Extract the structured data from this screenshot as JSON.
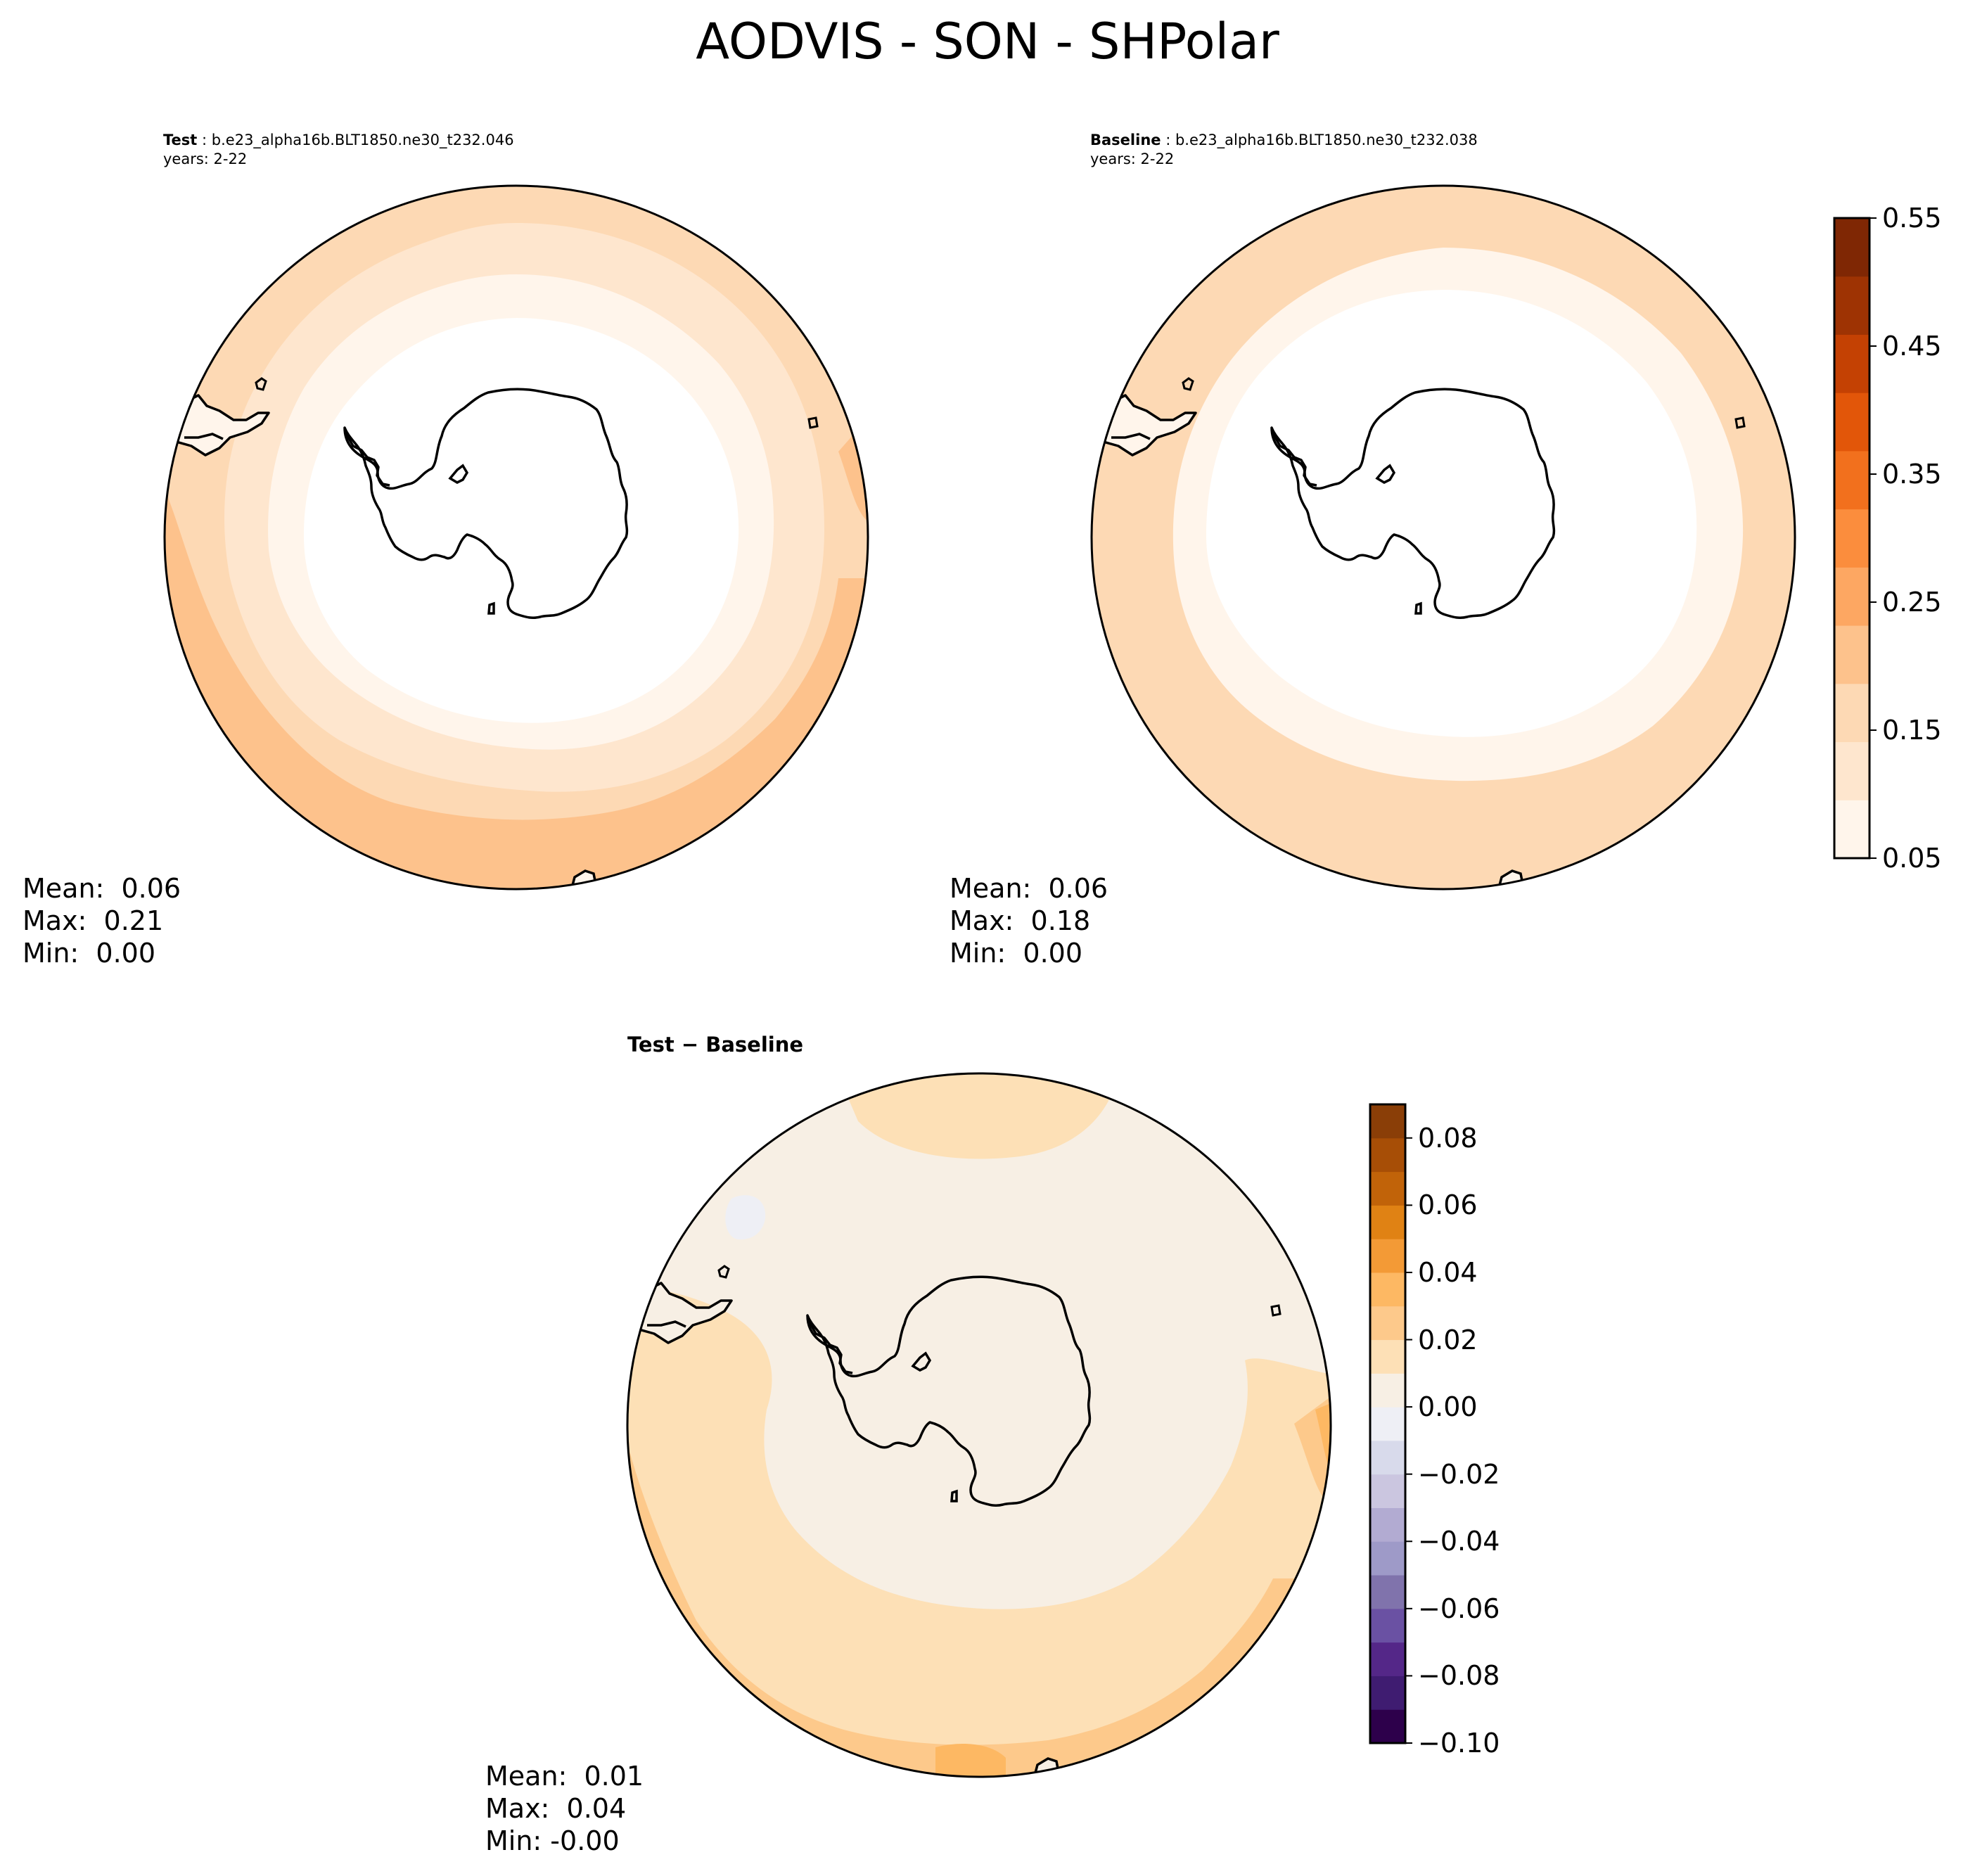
{
  "figure": {
    "title": "AODVIS - SON - SHPolar"
  },
  "panels": {
    "test": {
      "label": "Test",
      "case": "b.e23_alpha16b.BLT1850.ne30_t232.046",
      "years": "years: 2-22",
      "stats": {
        "mean": "Mean:  0.06",
        "max": "Max:  0.21",
        "min": "Min:  0.00"
      }
    },
    "baseline": {
      "label": "Baseline",
      "case": "b.e23_alpha16b.BLT1850.ne30_t232.038",
      "years": "years: 2-22",
      "stats": {
        "mean": "Mean:  0.06",
        "max": "Max:  0.18",
        "min": "Min:  0.00"
      }
    },
    "diff": {
      "label_a": "Test",
      "label_op": " − ",
      "label_b": "Baseline",
      "stats": {
        "mean": "Mean:  0.01",
        "max": "Max:  0.04",
        "min": "Min: -0.00"
      }
    }
  },
  "colorbars": {
    "main": {
      "ticks": [
        "0.05",
        "0.15",
        "0.25",
        "0.35",
        "0.45",
        "0.55"
      ],
      "tick_values": [
        0.05,
        0.15,
        0.25,
        0.35,
        0.45,
        0.55
      ],
      "range": [
        0.05,
        0.55
      ],
      "colors": [
        "#fff5eb",
        "#fee6ce",
        "#fdd9b4",
        "#fdc28c",
        "#fda762",
        "#fb8d3d",
        "#f2701d",
        "#e25609",
        "#c44103",
        "#9e3303",
        "#7f2704"
      ]
    },
    "diff": {
      "ticks": [
        "0.08",
        "0.06",
        "0.04",
        "0.02",
        "0.00",
        "−0.02",
        "−0.04",
        "−0.06",
        "−0.08",
        "−0.10"
      ],
      "tick_values": [
        0.08,
        0.06,
        0.04,
        0.02,
        0.0,
        -0.02,
        -0.04,
        -0.06,
        -0.08,
        -0.1
      ],
      "range": [
        -0.1,
        0.09
      ],
      "colors": [
        "#2d004b",
        "#3f1c71",
        "#542788",
        "#6a51a3",
        "#8073ac",
        "#9e9ac8",
        "#b2abd2",
        "#cbc6e0",
        "#d8daeb",
        "#eeeff5",
        "#f7efe4",
        "#fde0b6",
        "#fdc98b",
        "#fdb863",
        "#f39a36",
        "#e08214",
        "#c16309",
        "#a74e06",
        "#8a3e07"
      ]
    }
  },
  "chart_data": [
    {
      "type": "heatmap",
      "title": "Test : b.e23_alpha16b.BLT1850.ne30_t232.046",
      "subtitle": "years: 2-22",
      "projection": "south polar stereographic",
      "levels": [
        0.05,
        0.1,
        0.15,
        0.2,
        0.25,
        0.3,
        0.35,
        0.4,
        0.45,
        0.5,
        0.55
      ],
      "mean": 0.06,
      "max": 0.21,
      "min": 0.0
    },
    {
      "type": "heatmap",
      "title": "Baseline : b.e23_alpha16b.BLT1850.ne30_t232.038",
      "subtitle": "years: 2-22",
      "projection": "south polar stereographic",
      "levels": [
        0.05,
        0.1,
        0.15,
        0.2,
        0.25,
        0.3,
        0.35,
        0.4,
        0.45,
        0.5,
        0.55
      ],
      "mean": 0.06,
      "max": 0.18,
      "min": 0.0
    },
    {
      "type": "heatmap",
      "title": "Test − Baseline",
      "projection": "south polar stereographic",
      "levels": [
        -0.1,
        -0.09,
        -0.08,
        -0.07,
        -0.06,
        -0.05,
        -0.04,
        -0.03,
        -0.02,
        -0.01,
        0.0,
        0.01,
        0.02,
        0.03,
        0.04,
        0.05,
        0.06,
        0.07,
        0.08,
        0.09
      ],
      "mean": 0.01,
      "max": 0.04,
      "min": -0.0
    }
  ]
}
